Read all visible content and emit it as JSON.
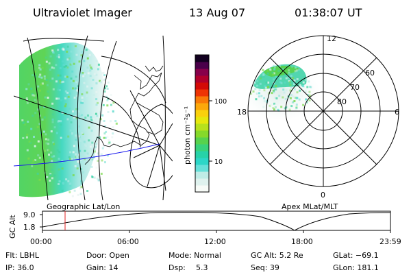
{
  "header": {
    "instrument": "Ultraviolet Imager",
    "date": "13 Aug 07",
    "time": "01:38:07 UT"
  },
  "colorbar": {
    "unit_label": "photon cm⁻²s⁻¹",
    "tick_labels": [
      "100",
      "10"
    ],
    "scale": "log",
    "colors": [
      "#f7fbf7",
      "#dff2ee",
      "#bfece6",
      "#66e0d9",
      "#2cd6c7",
      "#27d2a8",
      "#39d27b",
      "#57d24d",
      "#86d92a",
      "#b7e11c",
      "#e6e80d",
      "#fad10c",
      "#fca80a",
      "#f97a07",
      "#ee3404",
      "#d40a07",
      "#b1002c",
      "#88004a",
      "#4a004a",
      "#120020"
    ]
  },
  "polar_plot": {
    "labels": {
      "top": "12",
      "bottom": "0",
      "left": "18",
      "right": "6",
      "ring_80": "80",
      "ring_70": "70",
      "ring_60": "60"
    }
  },
  "map_plot": {
    "caption": "Geographic Lat/Lon"
  },
  "polar_caption": "Apex MLat/MLT",
  "altitude_plot": {
    "ylabel": "GC Alt",
    "y_ticks": [
      "9.0",
      "1.8"
    ],
    "x_ticks": [
      "00:00",
      "06:00",
      "12:00",
      "18:00",
      "23:59"
    ]
  },
  "footer": {
    "row1": {
      "flt": "Flt: LBHL",
      "door": "Door: Open",
      "mode": "Mode: Normal",
      "gc_alt": "GC Alt: 5.2 Re",
      "glat": "GLat: −69.1"
    },
    "row2": {
      "ip": "IP: 36.0",
      "gain": "Gain: 14",
      "dsp_label": "Dsp:",
      "dsp_value": "5.3",
      "seq": "Seq: 39",
      "glon": "GLon: 181.1"
    }
  }
}
